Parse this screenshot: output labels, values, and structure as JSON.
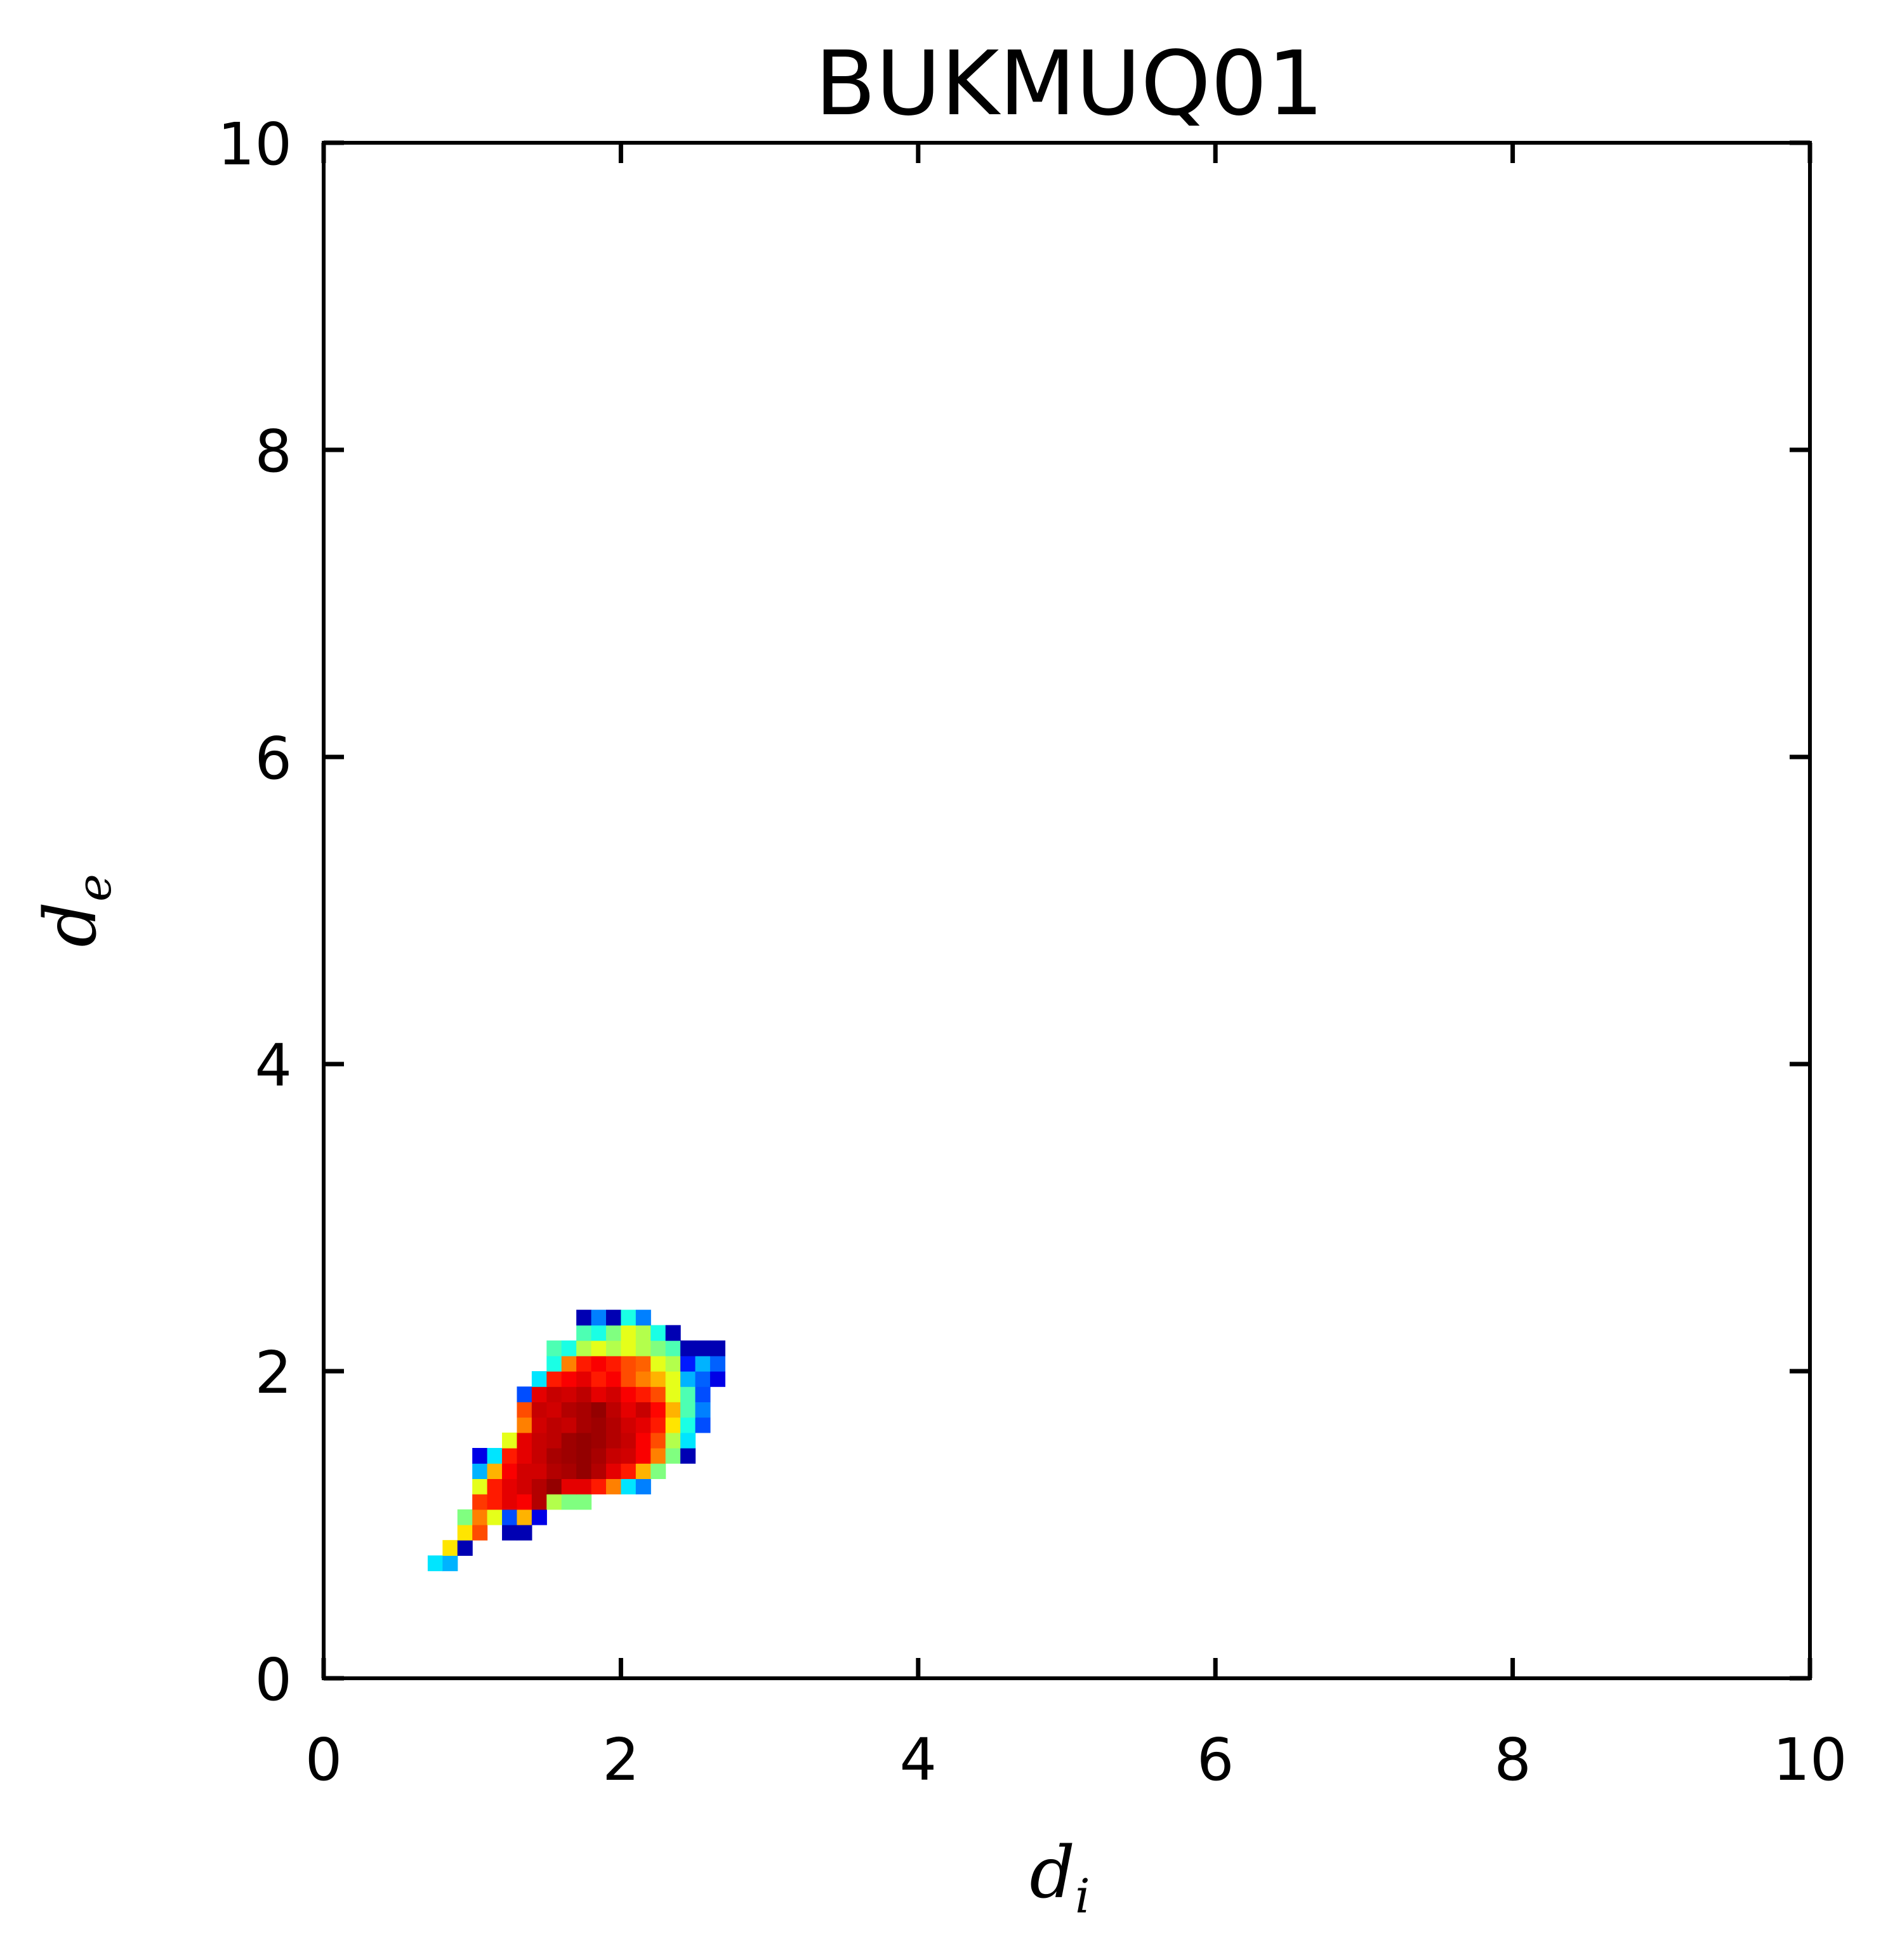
{
  "chart_data": {
    "type": "heatmap",
    "title": "BUKMUQ01",
    "xlabel": {
      "base": "d",
      "sub": "i"
    },
    "ylabel": {
      "base": "d",
      "sub": "e"
    },
    "xlim": [
      0,
      10
    ],
    "ylim": [
      0,
      10
    ],
    "xticks": [
      0,
      2,
      4,
      6,
      8,
      10
    ],
    "yticks": [
      0,
      2,
      4,
      6,
      8,
      10
    ],
    "bin_size": 0.1,
    "grid": false,
    "legend": "none",
    "colormap": "jet",
    "cells": [
      [
        0.7,
        0.7,
        0.35
      ],
      [
        0.8,
        0.7,
        0.3
      ],
      [
        0.8,
        0.8,
        0.65
      ],
      [
        0.9,
        0.8,
        0.05
      ],
      [
        0.9,
        0.9,
        0.65
      ],
      [
        1.0,
        0.9,
        0.8
      ],
      [
        1.2,
        0.9,
        0.05
      ],
      [
        1.3,
        0.9,
        0.05
      ],
      [
        0.9,
        1.0,
        0.5
      ],
      [
        1.0,
        1.0,
        0.75
      ],
      [
        1.1,
        1.0,
        0.6
      ],
      [
        1.2,
        1.0,
        0.2
      ],
      [
        1.3,
        1.0,
        0.7
      ],
      [
        1.4,
        1.0,
        0.1
      ],
      [
        1.0,
        1.1,
        0.82
      ],
      [
        1.1,
        1.1,
        0.85
      ],
      [
        1.2,
        1.1,
        0.9
      ],
      [
        1.3,
        1.1,
        0.88
      ],
      [
        1.4,
        1.1,
        0.95
      ],
      [
        1.5,
        1.1,
        0.55
      ],
      [
        1.6,
        1.1,
        0.5
      ],
      [
        1.7,
        1.1,
        0.5
      ],
      [
        1.0,
        1.2,
        0.6
      ],
      [
        1.1,
        1.2,
        0.85
      ],
      [
        1.2,
        1.2,
        0.9
      ],
      [
        1.3,
        1.2,
        0.92
      ],
      [
        1.4,
        1.2,
        0.95
      ],
      [
        1.5,
        1.2,
        0.98
      ],
      [
        1.6,
        1.2,
        0.9
      ],
      [
        1.7,
        1.2,
        0.9
      ],
      [
        1.8,
        1.2,
        0.85
      ],
      [
        1.9,
        1.2,
        0.75
      ],
      [
        2.0,
        1.2,
        0.35
      ],
      [
        2.1,
        1.2,
        0.25
      ],
      [
        1.0,
        1.3,
        0.3
      ],
      [
        1.1,
        1.3,
        0.7
      ],
      [
        1.2,
        1.3,
        0.88
      ],
      [
        1.3,
        1.3,
        0.92
      ],
      [
        1.4,
        1.3,
        0.92
      ],
      [
        1.5,
        1.3,
        0.95
      ],
      [
        1.6,
        1.3,
        0.96
      ],
      [
        1.7,
        1.3,
        0.98
      ],
      [
        1.8,
        1.3,
        0.95
      ],
      [
        1.9,
        1.3,
        0.9
      ],
      [
        2.0,
        1.3,
        0.85
      ],
      [
        2.1,
        1.3,
        0.7
      ],
      [
        2.2,
        1.3,
        0.5
      ],
      [
        1.0,
        1.4,
        0.1
      ],
      [
        1.1,
        1.4,
        0.35
      ],
      [
        1.2,
        1.4,
        0.85
      ],
      [
        1.3,
        1.4,
        0.9
      ],
      [
        1.4,
        1.4,
        0.93
      ],
      [
        1.5,
        1.4,
        0.96
      ],
      [
        1.6,
        1.4,
        0.97
      ],
      [
        1.7,
        1.4,
        0.98
      ],
      [
        1.8,
        1.4,
        0.96
      ],
      [
        1.9,
        1.4,
        0.93
      ],
      [
        2.0,
        1.4,
        0.92
      ],
      [
        2.1,
        1.4,
        0.88
      ],
      [
        2.2,
        1.4,
        0.75
      ],
      [
        2.3,
        1.4,
        0.5
      ],
      [
        2.4,
        1.4,
        0.05
      ],
      [
        1.2,
        1.5,
        0.6
      ],
      [
        1.3,
        1.5,
        0.9
      ],
      [
        1.4,
        1.5,
        0.93
      ],
      [
        1.5,
        1.5,
        0.94
      ],
      [
        1.6,
        1.5,
        0.97
      ],
      [
        1.7,
        1.5,
        0.98
      ],
      [
        1.8,
        1.5,
        0.97
      ],
      [
        1.9,
        1.5,
        0.95
      ],
      [
        2.0,
        1.5,
        0.93
      ],
      [
        2.1,
        1.5,
        0.88
      ],
      [
        2.2,
        1.5,
        0.8
      ],
      [
        2.3,
        1.5,
        0.55
      ],
      [
        2.4,
        1.5,
        0.35
      ],
      [
        1.3,
        1.6,
        0.75
      ],
      [
        1.4,
        1.6,
        0.92
      ],
      [
        1.5,
        1.6,
        0.94
      ],
      [
        1.6,
        1.6,
        0.93
      ],
      [
        1.7,
        1.6,
        0.96
      ],
      [
        1.8,
        1.6,
        0.97
      ],
      [
        1.9,
        1.6,
        0.95
      ],
      [
        2.0,
        1.6,
        0.92
      ],
      [
        2.1,
        1.6,
        0.9
      ],
      [
        2.2,
        1.6,
        0.85
      ],
      [
        2.3,
        1.6,
        0.65
      ],
      [
        2.4,
        1.6,
        0.4
      ],
      [
        2.5,
        1.6,
        0.2
      ],
      [
        1.3,
        1.7,
        0.8
      ],
      [
        1.4,
        1.7,
        0.93
      ],
      [
        1.5,
        1.7,
        0.92
      ],
      [
        1.6,
        1.7,
        0.95
      ],
      [
        1.7,
        1.7,
        0.96
      ],
      [
        1.8,
        1.7,
        0.98
      ],
      [
        1.9,
        1.7,
        0.94
      ],
      [
        2.0,
        1.7,
        0.9
      ],
      [
        2.1,
        1.7,
        0.93
      ],
      [
        2.2,
        1.7,
        0.87
      ],
      [
        2.3,
        1.7,
        0.7
      ],
      [
        2.4,
        1.7,
        0.45
      ],
      [
        2.5,
        1.7,
        0.25
      ],
      [
        1.3,
        1.8,
        0.2
      ],
      [
        1.4,
        1.8,
        0.9
      ],
      [
        1.5,
        1.8,
        0.93
      ],
      [
        1.6,
        1.8,
        0.92
      ],
      [
        1.7,
        1.8,
        0.94
      ],
      [
        1.8,
        1.8,
        0.9
      ],
      [
        1.9,
        1.8,
        0.92
      ],
      [
        2.0,
        1.8,
        0.88
      ],
      [
        2.1,
        1.8,
        0.85
      ],
      [
        2.2,
        1.8,
        0.8
      ],
      [
        2.3,
        1.8,
        0.6
      ],
      [
        2.4,
        1.8,
        0.45
      ],
      [
        2.5,
        1.8,
        0.2
      ],
      [
        1.4,
        1.9,
        0.35
      ],
      [
        1.5,
        1.9,
        0.85
      ],
      [
        1.6,
        1.9,
        0.88
      ],
      [
        1.7,
        1.9,
        0.9
      ],
      [
        1.8,
        1.9,
        0.85
      ],
      [
        1.9,
        1.9,
        0.88
      ],
      [
        2.0,
        1.9,
        0.8
      ],
      [
        2.1,
        1.9,
        0.75
      ],
      [
        2.2,
        1.9,
        0.7
      ],
      [
        2.3,
        1.9,
        0.6
      ],
      [
        2.4,
        1.9,
        0.3
      ],
      [
        2.5,
        1.9,
        0.22
      ],
      [
        2.6,
        1.9,
        0.1
      ],
      [
        1.5,
        2.0,
        0.4
      ],
      [
        1.6,
        2.0,
        0.75
      ],
      [
        1.7,
        2.0,
        0.85
      ],
      [
        1.8,
        2.0,
        0.88
      ],
      [
        1.9,
        2.0,
        0.85
      ],
      [
        2.0,
        2.0,
        0.8
      ],
      [
        2.1,
        2.0,
        0.78
      ],
      [
        2.2,
        2.0,
        0.6
      ],
      [
        2.3,
        2.0,
        0.55
      ],
      [
        2.4,
        2.0,
        0.15
      ],
      [
        2.5,
        2.0,
        0.3
      ],
      [
        2.6,
        2.0,
        0.22
      ],
      [
        1.5,
        2.1,
        0.45
      ],
      [
        1.6,
        2.1,
        0.4
      ],
      [
        1.7,
        2.1,
        0.55
      ],
      [
        1.8,
        2.1,
        0.6
      ],
      [
        1.9,
        2.1,
        0.55
      ],
      [
        2.0,
        2.1,
        0.6
      ],
      [
        2.1,
        2.1,
        0.55
      ],
      [
        2.2,
        2.1,
        0.5
      ],
      [
        2.3,
        2.1,
        0.45
      ],
      [
        2.4,
        2.1,
        0.05
      ],
      [
        2.5,
        2.1,
        0.05
      ],
      [
        2.6,
        2.1,
        0.05
      ],
      [
        1.7,
        2.2,
        0.45
      ],
      [
        1.8,
        2.2,
        0.4
      ],
      [
        1.9,
        2.2,
        0.5
      ],
      [
        2.0,
        2.2,
        0.6
      ],
      [
        2.1,
        2.2,
        0.55
      ],
      [
        2.2,
        2.2,
        0.4
      ],
      [
        2.3,
        2.2,
        0.05
      ],
      [
        1.7,
        2.3,
        0.05
      ],
      [
        1.8,
        2.3,
        0.25
      ],
      [
        1.9,
        2.3,
        0.05
      ],
      [
        2.0,
        2.3,
        0.4
      ],
      [
        2.1,
        2.3,
        0.25
      ]
    ]
  }
}
